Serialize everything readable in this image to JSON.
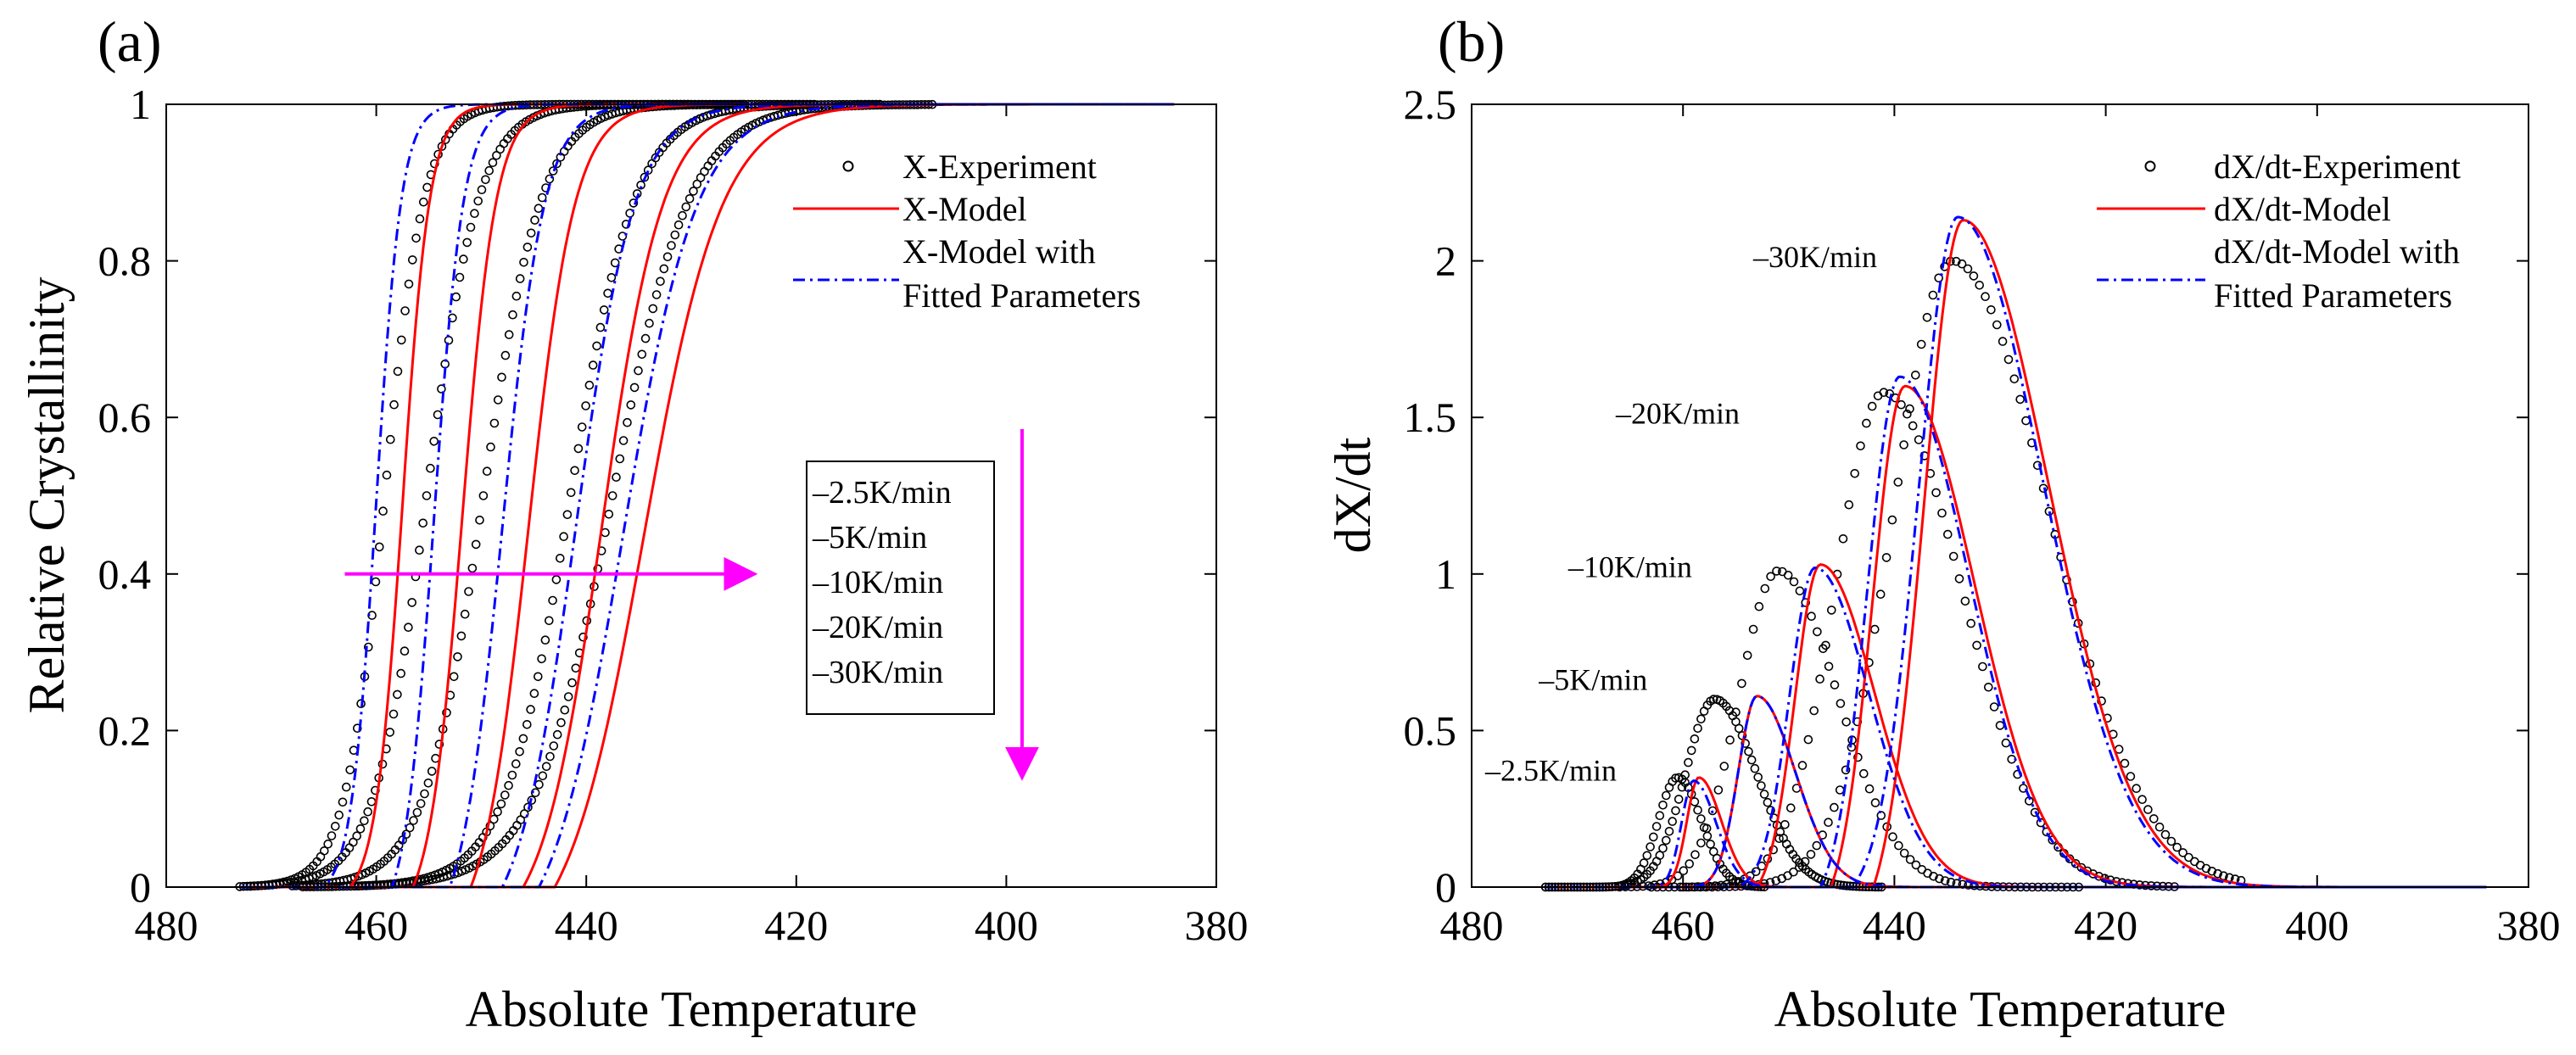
{
  "chart_data": [
    {
      "id": "a",
      "type": "line",
      "panel_label": "(a)",
      "xlabel": "Absolute Temperature",
      "ylabel": "Relative Crystallinity",
      "xlim": [
        480,
        380
      ],
      "ylim": [
        0,
        1
      ],
      "xticks": [
        "480",
        "460",
        "440",
        "420",
        "400",
        "380"
      ],
      "yticks": [
        "0",
        "0.2",
        "0.4",
        "0.6",
        "0.8",
        "1"
      ],
      "legend": [
        "X-Experiment",
        "X-Model",
        "X-Model with",
        "Fitted Parameters"
      ],
      "rate_box": [
        "–2.5K/min",
        "–5K/min",
        "–10K/min",
        "–20K/min",
        "–30K/min"
      ],
      "series": [
        {
          "name": "X-Experiment",
          "style": "circles",
          "curves": [
            {
              "rate": "-2.5K/min",
              "t_start": 473,
              "t_mid": 459.2,
              "width": 1.9,
              "t_end": 430
            },
            {
              "rate": "-5K/min",
              "t_start": 472,
              "t_mid": 455.2,
              "width": 2.5,
              "t_end": 425
            },
            {
              "rate": "-10K/min",
              "t_start": 468,
              "t_mid": 449.8,
              "width": 2.8,
              "t_end": 418
            },
            {
              "rate": "-20K/min",
              "t_start": 467,
              "t_mid": 441.5,
              "width": 3.1,
              "t_end": 412
            },
            {
              "rate": "-30K/min",
              "t_start": 462,
              "t_mid": 437.5,
              "width": 3.7,
              "t_end": 407
            }
          ]
        },
        {
          "name": "X-Model",
          "style": "red-solid",
          "curves": [
            {
              "rate": "-2.5K/min",
              "t_start": 462.5,
              "t_mid": 457.5,
              "width": 1.3,
              "t_end": 384
            },
            {
              "rate": "-5K/min",
              "t_start": 456.5,
              "t_mid": 451.8,
              "width": 1.6,
              "t_end": 384
            },
            {
              "rate": "-10K/min",
              "t_start": 451.0,
              "t_mid": 445.5,
              "width": 2.2,
              "t_end": 384
            },
            {
              "rate": "-20K/min",
              "t_start": 446.0,
              "t_mid": 438.5,
              "width": 2.9,
              "t_end": 384
            },
            {
              "rate": "-30K/min",
              "t_start": 443.0,
              "t_mid": 434.5,
              "width": 3.7,
              "t_end": 384
            }
          ]
        },
        {
          "name": "X-Model with Fitted Parameters",
          "style": "blue-dashdot",
          "curves": [
            {
              "rate": "-2.5K/min",
              "t_start": 465.0,
              "t_mid": 460.0,
              "width": 1.2,
              "t_end": 384
            },
            {
              "rate": "-5K/min",
              "t_start": 458.5,
              "t_mid": 454.5,
              "width": 1.4,
              "t_end": 384
            },
            {
              "rate": "-10K/min",
              "t_start": 453.0,
              "t_mid": 448.0,
              "width": 2.0,
              "t_end": 384
            },
            {
              "rate": "-20K/min",
              "t_start": 448.0,
              "t_mid": 441.0,
              "width": 2.8,
              "t_end": 384
            },
            {
              "rate": "-30K/min",
              "t_start": 444.5,
              "t_mid": 436.5,
              "width": 3.5,
              "t_end": 384
            }
          ]
        }
      ],
      "arrows": [
        {
          "from": [
            463,
            0.4
          ],
          "to": [
            424,
            0.4
          ],
          "color": "#ff00ff"
        },
        {
          "from": [
            398.5,
            0.585
          ],
          "to": [
            398.5,
            0.14
          ],
          "color": "#ff00ff"
        }
      ]
    },
    {
      "id": "b",
      "type": "line",
      "panel_label": "(b)",
      "xlabel": "Absolute Temperature",
      "ylabel": "dX/dt",
      "xlim": [
        480,
        380
      ],
      "ylim": [
        0,
        2.5
      ],
      "xticks": [
        "480",
        "460",
        "440",
        "420",
        "400",
        "380"
      ],
      "yticks": [
        "0",
        "0.5",
        "1",
        "1.5",
        "2",
        "2.5"
      ],
      "legend": [
        "dX/dt-Experiment",
        "dX/dt-Model",
        "dX/dt-Model with",
        "Fitted Parameters"
      ],
      "annotations": [
        {
          "text": "–30K/min",
          "x": 447.5,
          "y": 1.98
        },
        {
          "text": "–20K/min",
          "x": 460.5,
          "y": 1.48
        },
        {
          "text": "–10K/min",
          "x": 465.0,
          "y": 0.99
        },
        {
          "text": "–5K/min",
          "x": 468.5,
          "y": 0.63
        },
        {
          "text": "–2.5K/min",
          "x": 472.5,
          "y": 0.34
        }
      ],
      "series": [
        {
          "name": "dX/dt-Experiment",
          "style": "circles",
          "curves": [
            {
              "rate": "-2.5K/min",
              "peak_t": 460.5,
              "peak": 0.35,
              "t_start": 473,
              "t_end": 452
            },
            {
              "rate": "-5K/min",
              "peak_t": 457.0,
              "peak": 0.6,
              "t_start": 473,
              "t_end": 441
            },
            {
              "rate": "-10K/min",
              "peak_t": 451.0,
              "peak": 1.01,
              "t_start": 466,
              "t_end": 422
            },
            {
              "rate": "-20K/min",
              "peak_t": 441.0,
              "peak": 1.58,
              "t_start": 463,
              "t_end": 413
            },
            {
              "rate": "-30K/min",
              "peak_t": 434.5,
              "peak": 2.0,
              "t_start": 460,
              "t_end": 407
            }
          ]
        },
        {
          "name": "dX/dt-Model",
          "style": "red-solid",
          "curves": [
            {
              "rate": "-2.5K/min",
              "peak_t": 458.5,
              "peak": 0.35,
              "t_start": 464.0,
              "t_end": 384
            },
            {
              "rate": "-5K/min",
              "peak_t": 453.0,
              "peak": 0.61,
              "t_start": 460.0,
              "t_end": 384
            },
            {
              "rate": "-10K/min",
              "peak_t": 447.0,
              "peak": 1.03,
              "t_start": 453.0,
              "t_end": 384
            },
            {
              "rate": "-20K/min",
              "peak_t": 439.0,
              "peak": 1.6,
              "t_start": 446.0,
              "t_end": 384
            },
            {
              "rate": "-30K/min",
              "peak_t": 433.5,
              "peak": 2.13,
              "t_start": 442.0,
              "t_end": 384
            }
          ]
        },
        {
          "name": "dX/dt-Model with Fitted Parameters",
          "style": "blue-dashdot",
          "curves": [
            {
              "rate": "-2.5K/min",
              "peak_t": 459.0,
              "peak": 0.34,
              "t_start": 465.0,
              "t_end": 384
            },
            {
              "rate": "-5K/min",
              "peak_t": 453.0,
              "peak": 0.61,
              "t_start": 461.0,
              "t_end": 384
            },
            {
              "rate": "-10K/min",
              "peak_t": 447.5,
              "peak": 1.02,
              "t_start": 455.0,
              "t_end": 384
            },
            {
              "rate": "-20K/min",
              "peak_t": 439.5,
              "peak": 1.63,
              "t_start": 447.0,
              "t_end": 384
            },
            {
              "rate": "-30K/min",
              "peak_t": 434.0,
              "peak": 2.14,
              "t_start": 444.0,
              "t_end": 384
            }
          ]
        }
      ]
    }
  ]
}
